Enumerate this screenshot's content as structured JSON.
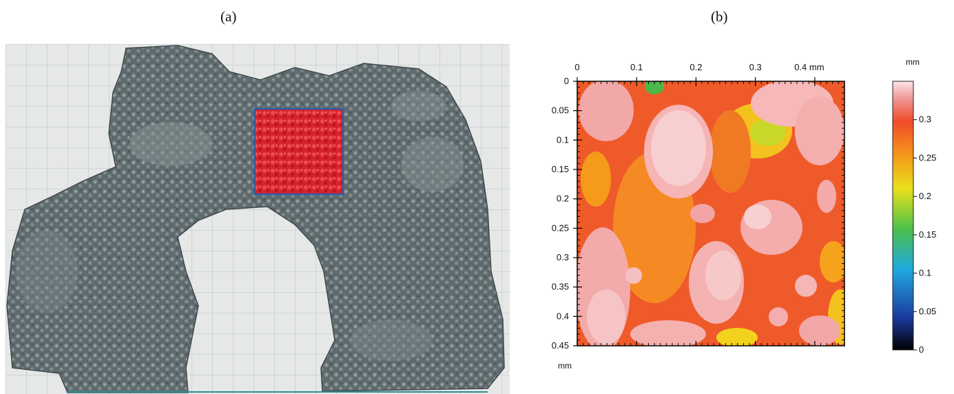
{
  "figure": {
    "panel_a_label": "(a)",
    "panel_b_label": "(b)"
  },
  "panel_a": {
    "content": "grey porous 3D surface scan on grid background with highlighted red square region",
    "colors": {
      "grid_background": "#e6e8e8",
      "grid_line": "#b9bfc1",
      "specimen": "#5f6a6d",
      "highlight_fill": "#e2303a",
      "highlight_border": "#2b5ea8"
    }
  },
  "panel_b": {
    "top_axis": {
      "ticks": [
        "0",
        "0.1",
        "0.2",
        "0.3",
        "0.4 mm"
      ],
      "values": [
        0,
        0.1,
        0.2,
        0.3,
        0.4
      ]
    },
    "left_axis": {
      "ticks": [
        "0",
        "0.05",
        "0.1",
        "0.15",
        "0.2",
        "0.25",
        "0.3",
        "0.35",
        "0.4",
        "0.45"
      ],
      "values": [
        0,
        0.05,
        0.1,
        0.15,
        0.2,
        0.25,
        0.3,
        0.35,
        0.4,
        0.45
      ],
      "unit_label": "mm"
    },
    "colorbar": {
      "unit": "mm",
      "ticks": [
        "0.3",
        "0.25",
        "0.2",
        "0.15",
        "0.1",
        "0.05",
        "0"
      ],
      "values": [
        0.3,
        0.25,
        0.2,
        0.15,
        0.1,
        0.05,
        0
      ],
      "range": [
        0,
        0.35
      ]
    }
  }
}
